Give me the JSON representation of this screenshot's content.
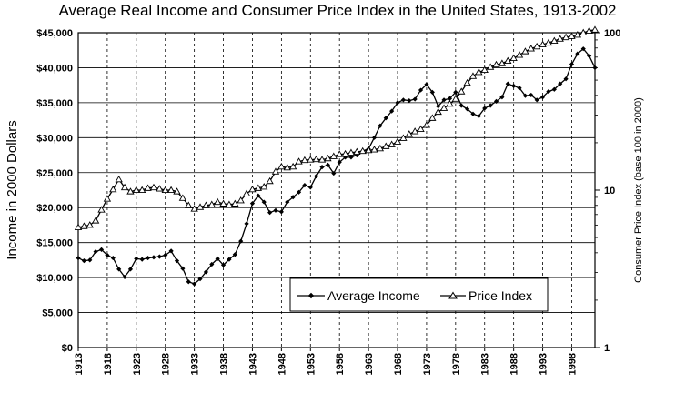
{
  "chart_data": {
    "type": "line",
    "title": "Average Real Income and Consumer Price Index in the United States, 1913-2002",
    "ylabel": "Income in 2000 Dollars",
    "y2label": "Consumer Price Index (base 100 in 2000)",
    "xlabel": "",
    "xlim": [
      1913,
      2002
    ],
    "ylim": [
      0,
      45000
    ],
    "y2lim": [
      1,
      100
    ],
    "y2scale": "log",
    "grid": "vertical dashed at x ticks; horizontal solid at left-axis ticks",
    "legend_position": "bottom-right",
    "x_ticks": [
      "1913",
      "1918",
      "1923",
      "1928",
      "1933",
      "1938",
      "1943",
      "1948",
      "1953",
      "1958",
      "1963",
      "1968",
      "1973",
      "1978",
      "1983",
      "1988",
      "1993",
      "1998"
    ],
    "y_ticks": [
      "$0",
      "$5,000",
      "$10,000",
      "$15,000",
      "$20,000",
      "$25,000",
      "$30,000",
      "$35,000",
      "$40,000",
      "$45,000"
    ],
    "y2_ticks": [
      "1",
      "10",
      "100"
    ],
    "x": [
      1913,
      1914,
      1915,
      1916,
      1917,
      1918,
      1919,
      1920,
      1921,
      1922,
      1923,
      1924,
      1925,
      1926,
      1927,
      1928,
      1929,
      1930,
      1931,
      1932,
      1933,
      1934,
      1935,
      1936,
      1937,
      1938,
      1939,
      1940,
      1941,
      1942,
      1943,
      1944,
      1945,
      1946,
      1947,
      1948,
      1949,
      1950,
      1951,
      1952,
      1953,
      1954,
      1955,
      1956,
      1957,
      1958,
      1959,
      1960,
      1961,
      1962,
      1963,
      1964,
      1965,
      1966,
      1967,
      1968,
      1969,
      1970,
      1971,
      1972,
      1973,
      1974,
      1975,
      1976,
      1977,
      1978,
      1979,
      1980,
      1981,
      1982,
      1983,
      1984,
      1985,
      1986,
      1987,
      1988,
      1989,
      1990,
      1991,
      1992,
      1993,
      1994,
      1995,
      1996,
      1997,
      1998,
      1999,
      2000,
      2001,
      2002
    ],
    "series": [
      {
        "name": "Average Income",
        "axis": "left",
        "marker": "filled-diamond",
        "values": [
          12800,
          12400,
          12500,
          13700,
          14000,
          13200,
          12800,
          11200,
          10100,
          11200,
          12700,
          12600,
          12800,
          12900,
          13000,
          13200,
          13800,
          12400,
          11300,
          9400,
          9100,
          9800,
          10800,
          11900,
          12700,
          11800,
          12600,
          13300,
          15200,
          17700,
          20600,
          21700,
          20800,
          19300,
          19600,
          19400,
          20800,
          21500,
          22200,
          23200,
          22900,
          24500,
          25800,
          26100,
          24900,
          26500,
          27200,
          27200,
          27500,
          28100,
          28400,
          30000,
          31700,
          32800,
          33800,
          35000,
          35400,
          35300,
          35500,
          36800,
          37600,
          36500,
          34500,
          35400,
          35600,
          36500,
          34600,
          34100,
          33400,
          33100,
          34200,
          34600,
          35200,
          35800,
          37700,
          37400,
          37100,
          36000,
          36100,
          35400,
          35800,
          36600,
          36900,
          37700,
          38400,
          40500,
          42000,
          42700,
          41700,
          40000
        ]
      },
      {
        "name": "Price Index",
        "axis": "right",
        "marker": "open-triangle",
        "values": [
          5.8,
          5.9,
          6.0,
          6.4,
          7.5,
          8.8,
          10.1,
          11.7,
          10.4,
          9.8,
          10.0,
          10.0,
          10.3,
          10.4,
          10.2,
          10.0,
          10.0,
          9.8,
          8.9,
          8.0,
          7.6,
          7.8,
          8.0,
          8.1,
          8.4,
          8.2,
          8.1,
          8.2,
          8.6,
          9.5,
          10.1,
          10.3,
          10.5,
          11.4,
          13.1,
          14.1,
          13.9,
          14.1,
          15.2,
          15.5,
          15.6,
          15.7,
          15.6,
          15.9,
          16.4,
          16.9,
          17.0,
          17.3,
          17.5,
          17.7,
          17.9,
          18.1,
          18.4,
          19.0,
          19.5,
          20.3,
          21.4,
          22.7,
          23.6,
          24.4,
          25.9,
          28.7,
          31.4,
          33.2,
          35.3,
          38.0,
          42.3,
          48.0,
          53.0,
          56.2,
          58.0,
          60.5,
          62.7,
          63.9,
          66.2,
          68.9,
          72.2,
          76.1,
          79.3,
          81.7,
          84.2,
          86.3,
          88.8,
          91.4,
          93.5,
          95.0,
          97.0,
          100.0,
          102.8,
          104.5
        ]
      }
    ]
  },
  "colors": {
    "line": "#000000",
    "grid": "#000000",
    "background": "#ffffff"
  }
}
